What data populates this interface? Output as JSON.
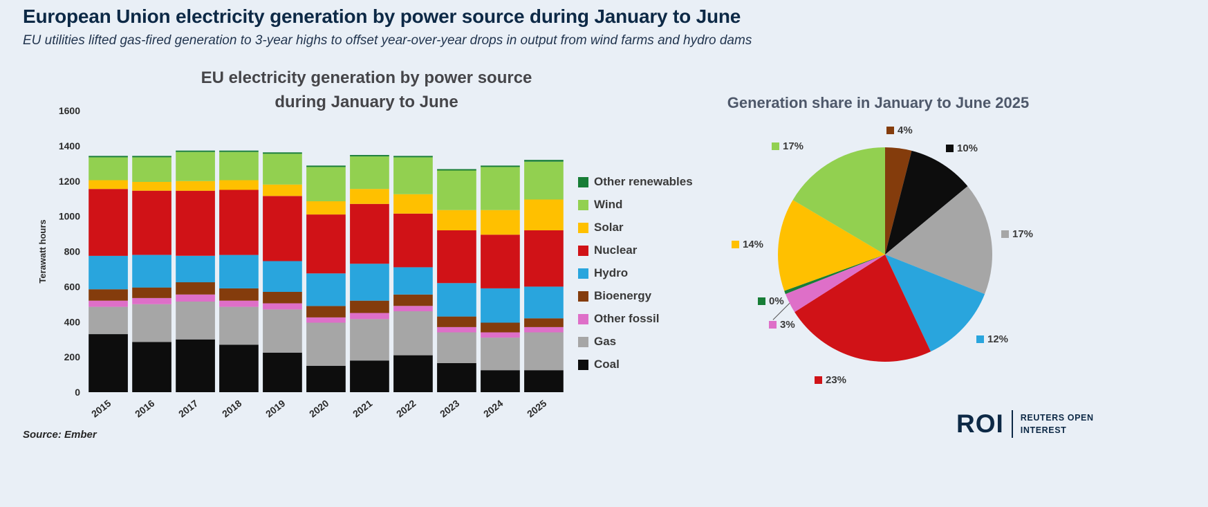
{
  "header": {
    "title": "European Union electricity generation by power source during January to June",
    "subtitle": "EU utilities lifted gas-fired generation to 3-year highs to offset year-over-year drops in output from wind farms and hydro dams"
  },
  "footer": {
    "source": "Source: Ember"
  },
  "logo": {
    "abbr": "ROI",
    "line1": "REUTERS OPEN",
    "line2": "INTEREST"
  },
  "colors": {
    "background": "#e9eff6",
    "title_navy": "#0d2946",
    "chart_title_gray": "#454549"
  },
  "chart_data": [
    {
      "type": "bar",
      "stacked": true,
      "title_line1": "EU electricity generation by power source",
      "title_line2": "during January to June",
      "ylabel": "Terawatt hours",
      "ylim": [
        0,
        1600
      ],
      "ytick_step": 200,
      "grid": false,
      "legend_position": "right",
      "categories": [
        "2015",
        "2016",
        "2017",
        "2018",
        "2019",
        "2020",
        "2021",
        "2022",
        "2023",
        "2024",
        "2025"
      ],
      "series": [
        {
          "name": "Coal",
          "color": "#0d0d0d",
          "values": [
            330,
            285,
            300,
            270,
            225,
            150,
            180,
            210,
            165,
            125,
            125
          ]
        },
        {
          "name": "Gas",
          "color": "#a6a6a6",
          "values": [
            155,
            215,
            215,
            215,
            245,
            245,
            235,
            250,
            175,
            185,
            215
          ]
        },
        {
          "name": "Other fossil",
          "color": "#de6fc8",
          "values": [
            35,
            35,
            40,
            35,
            35,
            30,
            35,
            30,
            30,
            30,
            30
          ]
        },
        {
          "name": "Bioenergy",
          "color": "#843c0c",
          "values": [
            65,
            60,
            70,
            70,
            65,
            65,
            70,
            65,
            60,
            55,
            50
          ]
        },
        {
          "name": "Hydro",
          "color": "#29a5dd",
          "values": [
            190,
            185,
            150,
            190,
            175,
            185,
            210,
            155,
            190,
            195,
            180
          ]
        },
        {
          "name": "Nuclear",
          "color": "#d01217",
          "values": [
            380,
            365,
            370,
            370,
            370,
            335,
            340,
            305,
            300,
            305,
            320
          ]
        },
        {
          "name": "Solar",
          "color": "#ffc000",
          "values": [
            50,
            50,
            55,
            55,
            65,
            75,
            85,
            110,
            115,
            140,
            175
          ]
        },
        {
          "name": "Wind",
          "color": "#92d050",
          "values": [
            130,
            140,
            165,
            160,
            175,
            195,
            185,
            210,
            225,
            245,
            215
          ]
        },
        {
          "name": "Other renewables",
          "color": "#177d36",
          "values": [
            8,
            8,
            8,
            8,
            8,
            8,
            8,
            8,
            8,
            8,
            10
          ]
        }
      ],
      "legend_order_top_to_bottom": [
        "Other renewables",
        "Wind",
        "Solar",
        "Nuclear",
        "Hydro",
        "Bioenergy",
        "Other fossil",
        "Gas",
        "Coal"
      ]
    },
    {
      "type": "pie",
      "title": "Generation share in January to June 2025",
      "start_at": "12-o-clock, clockwise",
      "slices": [
        {
          "name": "Bioenergy",
          "color": "#843c0c",
          "label": "4%",
          "value": 4
        },
        {
          "name": "Coal",
          "color": "#0d0d0d",
          "label": "10%",
          "value": 10
        },
        {
          "name": "Gas",
          "color": "#a6a6a6",
          "label": "17%",
          "value": 17
        },
        {
          "name": "Hydro",
          "color": "#29a5dd",
          "label": "12%",
          "value": 12
        },
        {
          "name": "Nuclear",
          "color": "#d01217",
          "label": "23%",
          "value": 23
        },
        {
          "name": "Other fossil",
          "color": "#de6fc8",
          "label": "3%",
          "value": 3
        },
        {
          "name": "Other renewables",
          "color": "#177d36",
          "label": "0%",
          "value": 0.5
        },
        {
          "name": "Solar",
          "color": "#ffc000",
          "label": "14%",
          "value": 14
        },
        {
          "name": "Wind",
          "color": "#92d050",
          "label": "17%",
          "value": 16.5
        }
      ]
    }
  ]
}
